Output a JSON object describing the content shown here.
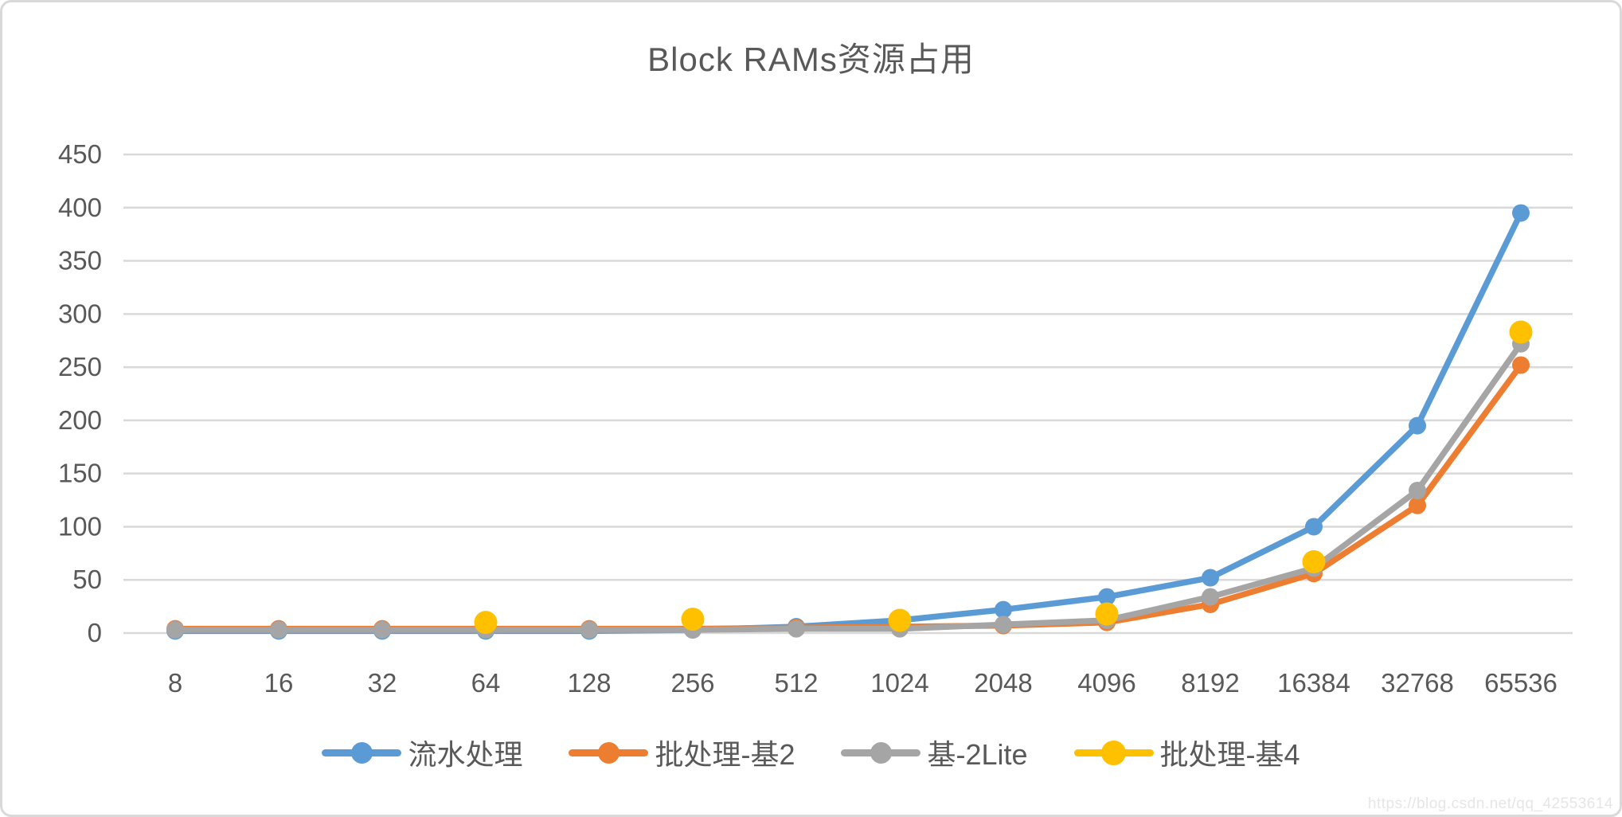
{
  "chart_data": {
    "type": "line",
    "title": "Block RAMs资源占用",
    "categories": [
      "8",
      "16",
      "32",
      "64",
      "128",
      "256",
      "512",
      "1024",
      "2048",
      "4096",
      "8192",
      "16384",
      "32768",
      "65536"
    ],
    "series": [
      {
        "name": "流水处理",
        "color": "#5B9BD5",
        "marker_radius": 11,
        "values": [
          2,
          2,
          2,
          2,
          2,
          3,
          6,
          12,
          22,
          34,
          52,
          100,
          195,
          395
        ]
      },
      {
        "name": "批处理-基2",
        "color": "#ED7D31",
        "marker_radius": 11,
        "values": [
          4,
          4,
          4,
          4,
          4,
          4,
          5,
          6,
          7,
          10,
          27,
          56,
          120,
          252
        ]
      },
      {
        "name": "基-2Lite",
        "color": "#A5A5A5",
        "marker_radius": 11,
        "values": [
          3,
          3,
          3,
          3,
          3,
          3,
          4,
          4,
          8,
          12,
          34,
          61,
          134,
          272
        ]
      },
      {
        "name": "批处理-基4",
        "color": "#FFC000",
        "marker_radius": 14.5,
        "values": [
          null,
          null,
          null,
          10,
          null,
          13,
          null,
          12,
          null,
          18,
          null,
          67,
          null,
          283
        ]
      }
    ],
    "xlabel": "",
    "ylabel": "",
    "ylim": [
      0,
      450
    ],
    "ytick_step": 50,
    "grid": true,
    "legend_position": "bottom"
  },
  "watermark": "https://blog.csdn.net/qq_42553614",
  "colors": {
    "text": "#595959",
    "gridline": "#D9D9D9",
    "border": "#D9D9D9",
    "background": "#FFFFFF"
  }
}
